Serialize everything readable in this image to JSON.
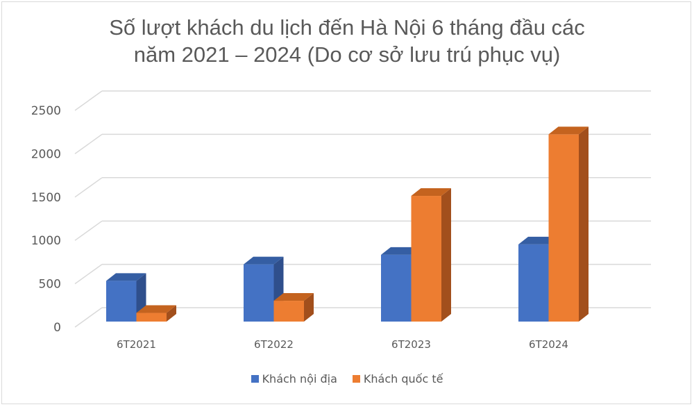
{
  "title_line1": "Số lượt khách du lịch đến Hà Nội 6 tháng đầu các",
  "title_line2": "năm 2021 – 2024 (Do cơ sở lưu trú phục vụ)",
  "y_ticks": [
    "0",
    "500",
    "1000",
    "1500",
    "2000",
    "2500"
  ],
  "categories": [
    "6T2021",
    "6T2022",
    "6T2023",
    "6T2024"
  ],
  "legend": [
    {
      "label": "Khách nội địa",
      "color": "#4472c4"
    },
    {
      "label": "Khách quốc tế",
      "color": "#ed7d31"
    }
  ],
  "colors": {
    "blue_front": "#4472c4",
    "blue_side": "#2f4f8c",
    "blue_top": "#355ea3",
    "orange_front": "#ed7d31",
    "orange_side": "#a24f1c",
    "orange_top": "#c4631f",
    "grid": "#d9d9d9",
    "text": "#595959"
  },
  "chart_data": {
    "type": "bar",
    "title": "Số lượt khách du lịch đến Hà Nội 6 tháng đầu các năm 2021 – 2024 (Do cơ sở lưu trú phục vụ)",
    "categories": [
      "6T2021",
      "6T2022",
      "6T2023",
      "6T2024"
    ],
    "series": [
      {
        "name": "Khách nội địa",
        "values": [
          470,
          660,
          770,
          890
        ]
      },
      {
        "name": "Khách quốc tế",
        "values": [
          100,
          240,
          1450,
          2160
        ]
      }
    ],
    "xlabel": "",
    "ylabel": "",
    "ylim": [
      0,
      2500
    ],
    "yticks": [
      0,
      500,
      1000,
      1500,
      2000,
      2500
    ],
    "grid": true,
    "legend_position": "bottom",
    "style": "3d-clustered-column"
  }
}
